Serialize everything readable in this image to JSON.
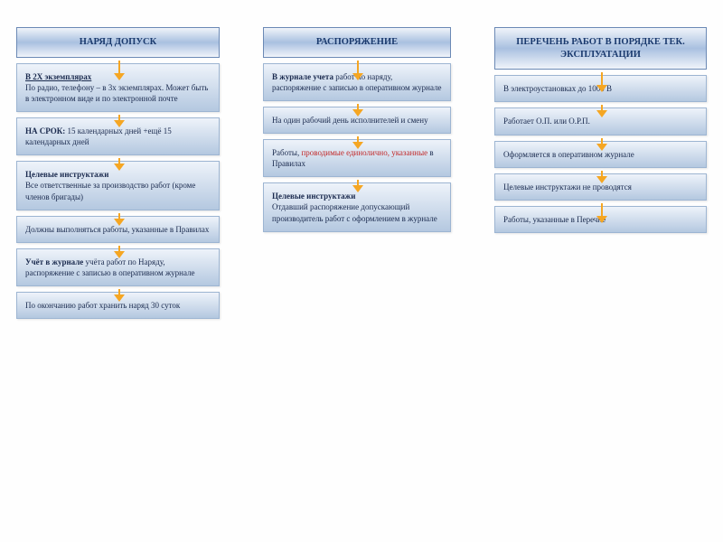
{
  "colors": {
    "header_gradient_top": "#f0f4fa",
    "header_gradient_mid": "#a9c0e0",
    "box_gradient_top": "#eef3fa",
    "box_gradient_bottom": "#b4c8e0",
    "border": "#6b89b5",
    "text_primary": "#1a3a6e",
    "arrow": "#f5a623",
    "red": "#c12a2a",
    "background": "#fefefe"
  },
  "layout": {
    "type": "flowchart",
    "columns": 3,
    "arrow_style": "orange-down"
  },
  "col1": {
    "header": "НАРЯД ДОПУСК",
    "boxes": [
      {
        "title": "В 2Х экземплярах",
        "title_underline": true,
        "body": "По радио, телефону – в 3х экземплярах. Может быть в электронном виде и по электронной почте"
      },
      {
        "title": "НА СРОК:",
        "body": " 15 календарных дней +ещё 15 календарных дней"
      },
      {
        "title": "Целевые инструктажи",
        "body": "Все ответственные за производство работ (кроме членов бригады)"
      },
      {
        "body": "Должны выполняться работы, указанные в Правилах"
      },
      {
        "title": "Учёт в журнале",
        "body": " учёта работ по Наряду, распоряжение с записью в оперативном журнале"
      },
      {
        "body": "По окончанию работ хранить наряд 30 суток"
      }
    ]
  },
  "col2": {
    "header": "РАСПОРЯЖЕНИЕ",
    "boxes": [
      {
        "title": "В журнале учета",
        "body": " работ по наряду, распоряжение с записью в оперативном журнале"
      },
      {
        "body": "На один рабочий день исполнителей и смену"
      },
      {
        "pre": "Работы, ",
        "red": "проводимые единолично, указанные",
        "post": " в Правилах"
      },
      {
        "title": "Целевые инструктажи",
        "body": "Отдавший распоряжение допускающий производитель работ с оформлением в журнале"
      }
    ]
  },
  "col3": {
    "header": "ПЕРЕЧЕНЬ РАБОТ В ПОРЯДКЕ ТЕК. ЭКСПЛУАТАЦИИ",
    "boxes": [
      {
        "body": "В электроустановках до 1000 В"
      },
      {
        "body": "Работает О.П. или О.Р.П."
      },
      {
        "body": "Оформляется в оперативном журнале"
      },
      {
        "body": "Целевые инструктажи не проводятся"
      },
      {
        "body": "Работы, указанные в Перечне"
      }
    ]
  }
}
